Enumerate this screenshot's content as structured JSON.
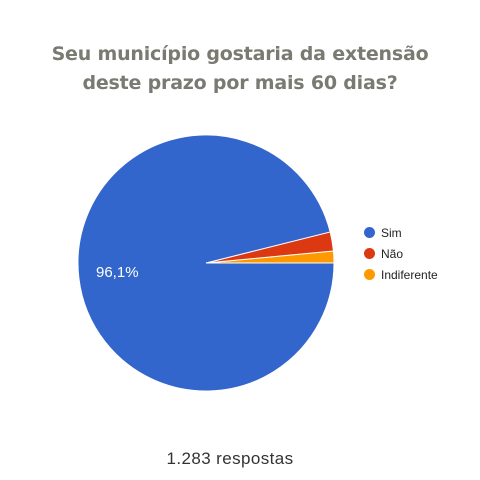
{
  "chart_data": {
    "type": "pie",
    "title_lines": [
      "Seu município gostaria da extensão",
      "deste prazo por mais 60 dias?"
    ],
    "slices": [
      {
        "label": "Sim",
        "value": 96.1,
        "display_label": "96,1%",
        "color": "#3366cc"
      },
      {
        "label": "Não",
        "value": 2.4,
        "display_label": "",
        "color": "#dc3912"
      },
      {
        "label": "Indiferente",
        "value": 1.5,
        "display_label": "",
        "color": "#ff9900"
      }
    ],
    "legend_position": "right"
  },
  "footer": {
    "responses": "1.283 respostas"
  }
}
